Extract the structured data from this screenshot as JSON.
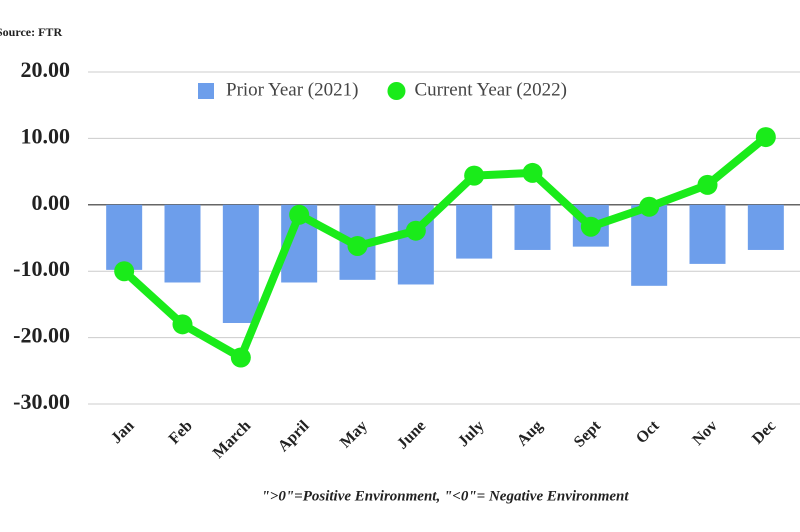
{
  "chart_data": {
    "type": "combo",
    "source": "Source: FTR",
    "note": "\">0\"=Positive Environment, \"<0\"= Negative Environment",
    "categories": [
      "Jan",
      "Feb",
      "March",
      "April",
      "May",
      "June",
      "July",
      "Aug",
      "Sept",
      "Oct",
      "Nov",
      "Dec"
    ],
    "series": [
      {
        "name": "Prior Year (2021)",
        "type": "bar",
        "color": "#6d9eeb",
        "values": [
          -9.8,
          -11.7,
          -17.8,
          -11.7,
          -11.3,
          -12.0,
          -8.1,
          -6.8,
          -6.3,
          -12.2,
          -8.9,
          -6.8
        ]
      },
      {
        "name": "Current Year (2022)",
        "type": "line",
        "color": "#1aeb1a",
        "values": [
          -10.0,
          -18.0,
          -23.0,
          -1.5,
          -6.2,
          -3.9,
          4.4,
          4.8,
          -3.3,
          -0.3,
          3.0,
          10.2
        ]
      }
    ],
    "ylim": [
      -30,
      20
    ],
    "yticks": [
      {
        "value": 20,
        "label": "20.00"
      },
      {
        "value": 10,
        "label": "10.00"
      },
      {
        "value": 0,
        "label": "0.00"
      },
      {
        "value": -10,
        "label": "-10.00"
      },
      {
        "value": -20,
        "label": "-20.00"
      },
      {
        "value": -30,
        "label": "-30.00"
      }
    ],
    "grid": true,
    "legend": "top"
  }
}
